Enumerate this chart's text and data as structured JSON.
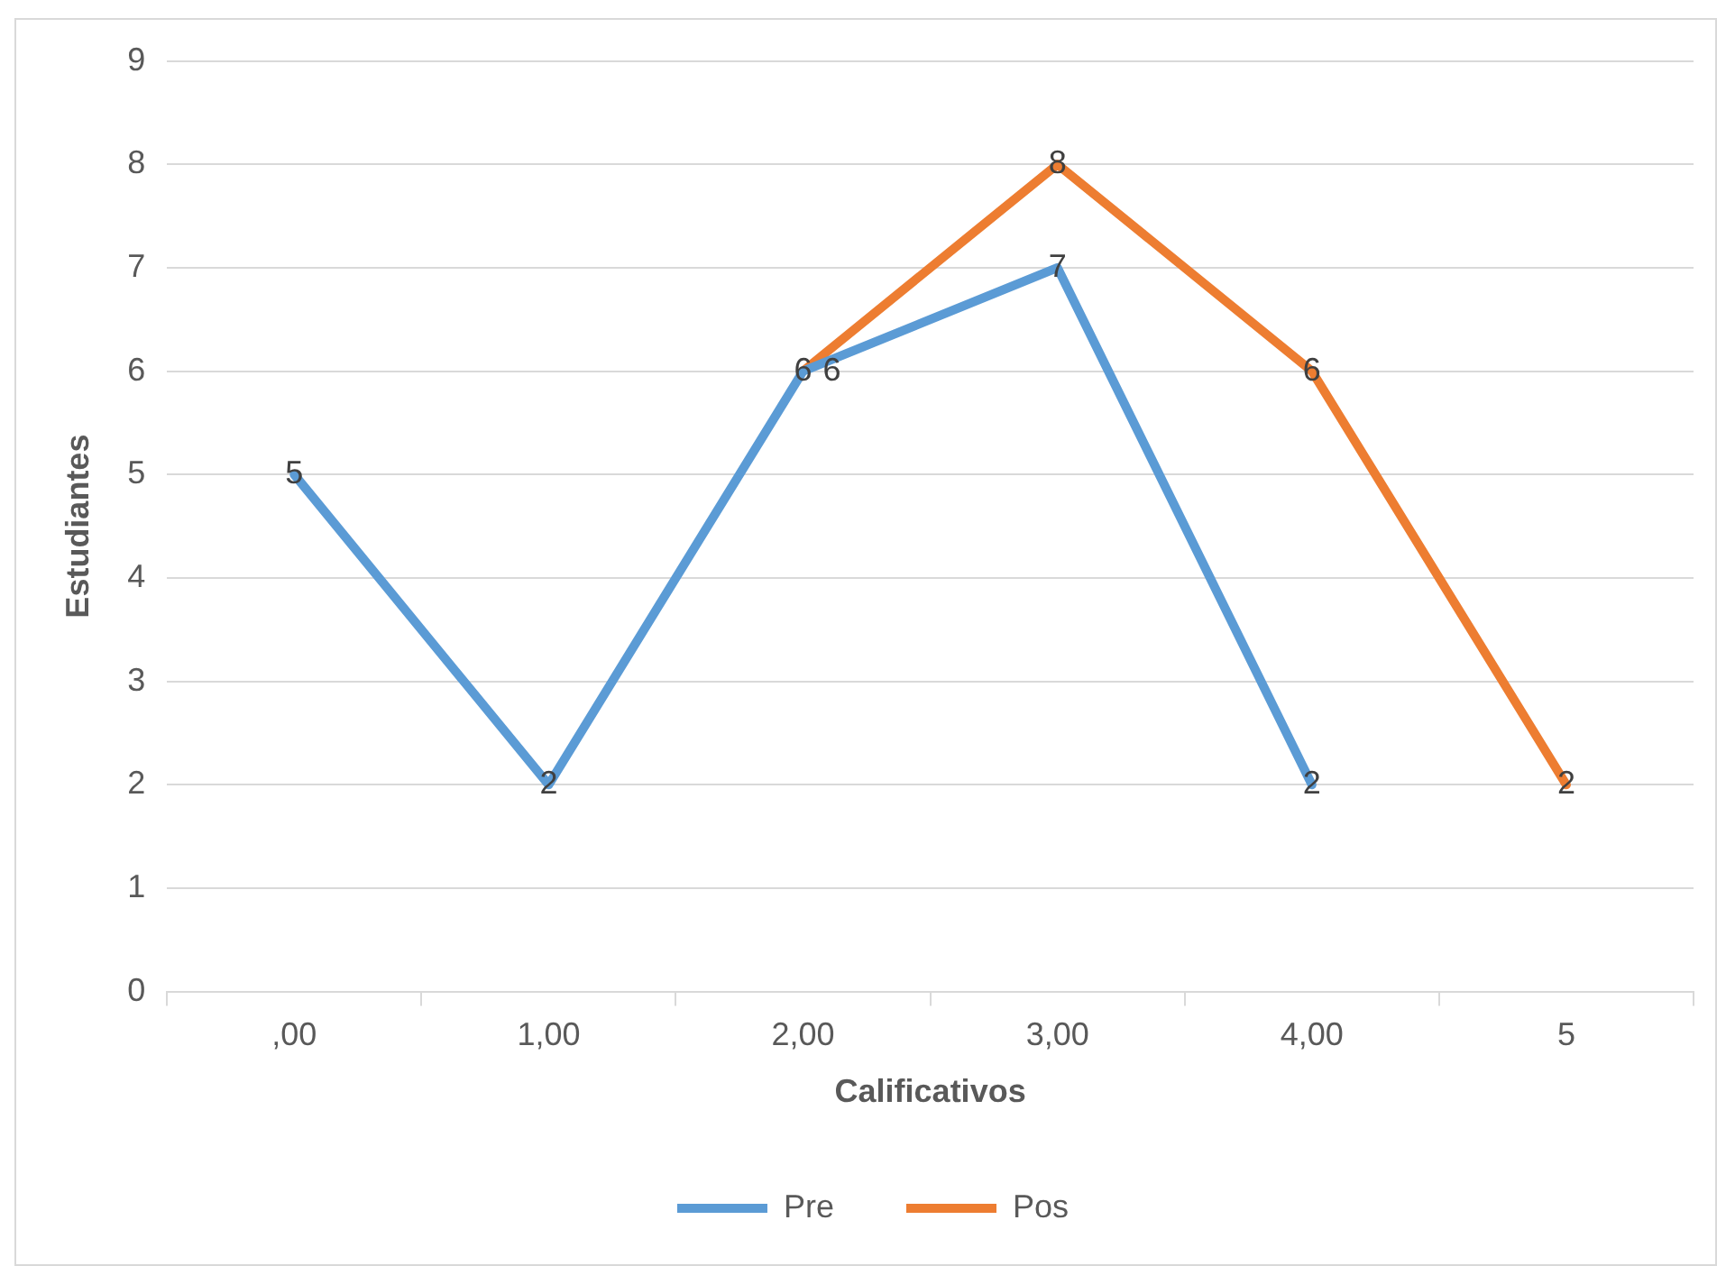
{
  "chart_data": {
    "type": "line",
    "xlabel": "Calificativos",
    "ylabel": "Estudiantes",
    "categories": [
      ",00",
      "1,00",
      "2,00",
      "3,00",
      "4,00",
      "5"
    ],
    "series": [
      {
        "name": "Pre",
        "color": "#5b9bd5",
        "values": [
          5,
          2,
          6,
          7,
          2,
          null
        ]
      },
      {
        "name": "Pos",
        "color": "#ed7d31",
        "values": [
          null,
          null,
          6,
          8,
          6,
          2
        ]
      }
    ],
    "ylim": [
      0,
      9
    ],
    "yticks": [
      0,
      1,
      2,
      3,
      4,
      5,
      6,
      7,
      8,
      9
    ],
    "grid": "y",
    "legend": "bottom",
    "data_labels": true,
    "marker": "none",
    "line_style": "solid"
  }
}
